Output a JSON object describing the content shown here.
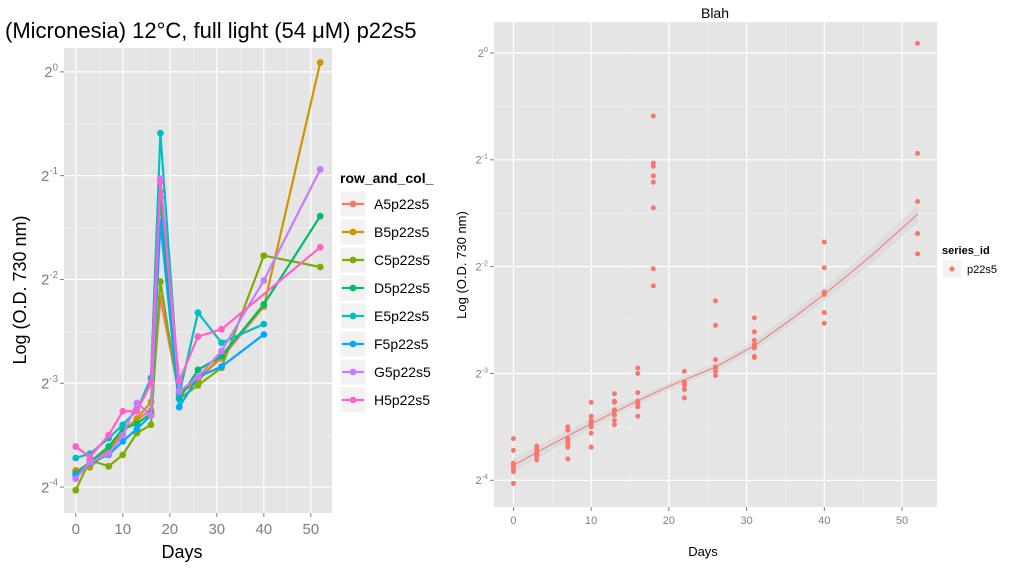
{
  "chart_data": [
    {
      "type": "line",
      "title": "(Micronesia) 12°C, full light (54 μM) p22s5",
      "xlabel": "Days",
      "ylabel": "Log (O.D. 730 nm)",
      "y_scale": "log2",
      "y_values_are": "log2 exponent",
      "xlim": [
        -2.5,
        54.5
      ],
      "ylim_log2": [
        -4.25,
        0.23
      ],
      "x_ticks": [
        "0",
        "10",
        "20",
        "30",
        "40",
        "50"
      ],
      "y_ticks": [
        {
          "base": "2",
          "exp": "0"
        },
        {
          "base": "2",
          "exp": "-1"
        },
        {
          "base": "2",
          "exp": "-2"
        },
        {
          "base": "2",
          "exp": "-3"
        },
        {
          "base": "2",
          "exp": "-4"
        }
      ],
      "grid": true,
      "legend": {
        "title": "row_and_col_",
        "placement": "right"
      },
      "series": [
        {
          "name": "A5p22s5",
          "color": "#F8766D",
          "x": [
            0,
            3,
            7,
            10,
            13,
            16,
            18,
            22,
            26,
            31,
            40
          ],
          "y": [
            -3.85,
            -3.77,
            -3.63,
            -3.45,
            -3.35,
            -3.26,
            -2.18,
            -3.11,
            -2.95,
            -2.76,
            -2.26
          ]
        },
        {
          "name": "B5p22s5",
          "color": "#CD9600",
          "x": [
            0,
            3,
            7,
            10,
            13,
            16,
            18,
            22,
            26,
            31,
            40,
            52
          ],
          "y": [
            -3.84,
            -3.81,
            -3.65,
            -3.47,
            -3.34,
            -3.18,
            -1.15,
            -3.1,
            -2.98,
            -2.73,
            -2.26,
            0.09
          ]
        },
        {
          "name": "C5p22s5",
          "color": "#7CAE00",
          "x": [
            0,
            3,
            7,
            10,
            13,
            16,
            18,
            22,
            26,
            31,
            40,
            52
          ],
          "y": [
            -4.03,
            -3.74,
            -3.8,
            -3.69,
            -3.48,
            -3.4,
            -2.02,
            -3.15,
            -3.02,
            -2.85,
            -1.77,
            -1.88
          ]
        },
        {
          "name": "D5p22s5",
          "color": "#00BE67",
          "x": [
            0,
            3,
            7,
            10,
            13,
            16,
            18,
            22,
            26,
            31,
            40,
            52
          ],
          "y": [
            -3.87,
            -3.76,
            -3.61,
            -3.44,
            -3.39,
            -3.29,
            -1.21,
            -3.15,
            -2.87,
            -2.74,
            -2.24,
            -1.39
          ]
        },
        {
          "name": "E5p22s5",
          "color": "#00BFC4",
          "x": [
            0,
            3,
            7,
            10,
            13,
            16,
            18,
            22,
            26,
            31,
            40
          ],
          "y": [
            -3.72,
            -3.68,
            -3.53,
            -3.4,
            -3.26,
            -2.95,
            -0.59,
            -3.11,
            -2.32,
            -2.61,
            -2.43
          ]
        },
        {
          "name": "F5p22s5",
          "color": "#00A9FF",
          "x": [
            0,
            3,
            7,
            10,
            13,
            16,
            18,
            22,
            26,
            31,
            40
          ],
          "y": [
            -3.89,
            -3.77,
            -3.69,
            -3.56,
            -3.44,
            -3.31,
            -1.45,
            -3.23,
            -2.94,
            -2.84,
            -2.53
          ]
        },
        {
          "name": "G5p22s5",
          "color": "#C77CFF",
          "x": [
            0,
            3,
            7,
            10,
            13,
            16,
            18,
            22,
            26,
            31,
            40,
            52
          ],
          "y": [
            -3.92,
            -3.76,
            -3.68,
            -3.5,
            -3.19,
            -3.31,
            -1.03,
            -3.08,
            -2.94,
            -2.69,
            -2.01,
            -0.94
          ]
        },
        {
          "name": "H5p22s5",
          "color": "#FF61CC",
          "x": [
            0,
            3,
            7,
            10,
            13,
            16,
            18,
            22,
            26,
            31,
            52
          ],
          "y": [
            -3.61,
            -3.71,
            -3.5,
            -3.27,
            -3.27,
            -3.0,
            -1.06,
            -2.98,
            -2.55,
            -2.48,
            -1.69
          ]
        }
      ]
    },
    {
      "type": "scatter",
      "title": "Blah",
      "xlabel": "Days",
      "ylabel": "Log (O.D. 730 nm)",
      "y_scale": "log2",
      "xlim": [
        -2.5,
        54.5
      ],
      "ylim_log2": [
        -4.25,
        0.29
      ],
      "x_ticks": [
        "0",
        "10",
        "20",
        "30",
        "40",
        "50"
      ],
      "y_ticks": [
        {
          "base": "2",
          "exp": "0"
        },
        {
          "base": "2",
          "exp": "-1"
        },
        {
          "base": "2",
          "exp": "-2"
        },
        {
          "base": "2",
          "exp": "-3"
        },
        {
          "base": "2",
          "exp": "-4"
        }
      ],
      "grid": true,
      "legend": {
        "title": "series_id",
        "entries": [
          "p22s5"
        ],
        "placement": "right"
      },
      "point_color": "#F8766D",
      "points_source": "all series of chart 1",
      "smooth": {
        "x": [
          0,
          5,
          10,
          15,
          20,
          26,
          31,
          36,
          40,
          46,
          52
        ],
        "y": [
          -3.86,
          -3.66,
          -3.47,
          -3.29,
          -3.12,
          -2.94,
          -2.74,
          -2.48,
          -2.26,
          -1.9,
          -1.51
        ]
      }
    }
  ]
}
